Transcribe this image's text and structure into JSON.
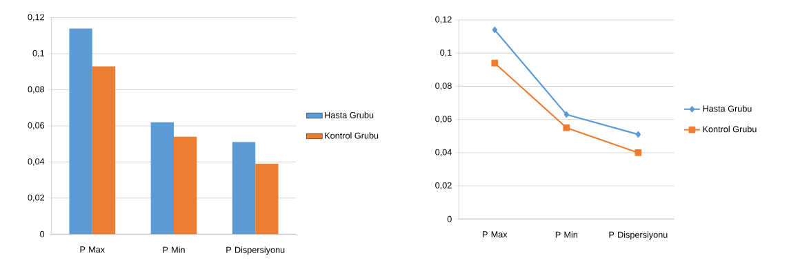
{
  "chart_data": [
    {
      "type": "bar",
      "categories": [
        "P Max",
        "P Min",
        "P Dispersiyonu"
      ],
      "series": [
        {
          "name": "Hasta Grubu",
          "color": "#5b9bd5",
          "values": [
            0.114,
            0.062,
            0.051
          ]
        },
        {
          "name": "Kontrol Grubu",
          "color": "#ed7d31",
          "values": [
            0.093,
            0.054,
            0.039
          ]
        }
      ],
      "ylim": [
        0,
        0.12
      ],
      "yticks": [
        0,
        {
          "value": 0.02,
          "label": "0,02"
        },
        {
          "value": 0.04,
          "label": "0,04"
        },
        {
          "value": 0.06,
          "label": "0,06"
        },
        {
          "value": 0.08,
          "label": "0,08"
        },
        {
          "value": 0.1,
          "label": "0,1"
        },
        {
          "value": 0.12,
          "label": "0,12"
        }
      ],
      "grid": "y",
      "legend": "right"
    },
    {
      "type": "line",
      "categories": [
        "P Max",
        "P Min",
        "P Dispersiyonu"
      ],
      "series": [
        {
          "name": "Hasta Grubu",
          "color": "#5b9bd5",
          "marker": "diamond",
          "values": [
            0.114,
            0.063,
            0.051
          ]
        },
        {
          "name": "Kontrol Grubu",
          "color": "#ed7d31",
          "marker": "square",
          "values": [
            0.094,
            0.055,
            0.04
          ]
        }
      ],
      "ylim": [
        0,
        0.12
      ],
      "yticks": [
        0,
        {
          "value": 0.02,
          "label": "0,02"
        },
        {
          "value": 0.04,
          "label": "0,04"
        },
        {
          "value": 0.06,
          "label": "0,06"
        },
        {
          "value": 0.08,
          "label": "0,08"
        },
        {
          "value": 0.1,
          "label": "0,1"
        },
        {
          "value": 0.12,
          "label": "0,12"
        }
      ],
      "grid": "y",
      "legend": "right"
    }
  ]
}
